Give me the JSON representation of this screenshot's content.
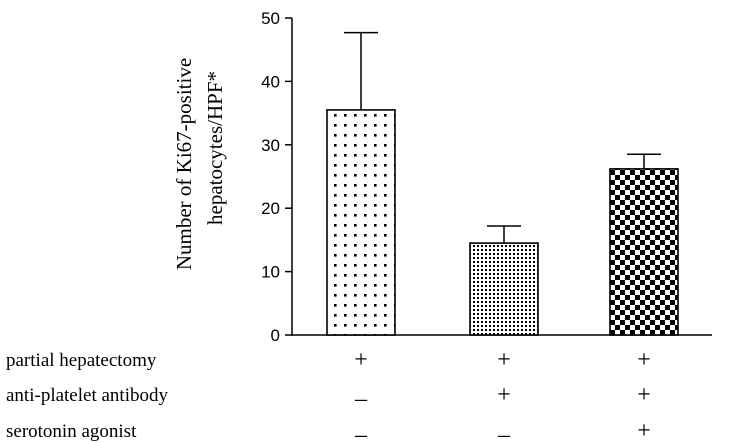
{
  "chart_data": {
    "type": "bar",
    "title": "",
    "ylabel_lines": [
      "Number of Ki67-positive",
      "hepatocytes/HPF*"
    ],
    "ylim": [
      0,
      50
    ],
    "yticks": [
      "0",
      "10",
      "20",
      "30",
      "40",
      "50"
    ],
    "grid": false,
    "bars": [
      {
        "value": 35.5,
        "error": 12.2,
        "pattern": "sparse-dots"
      },
      {
        "value": 14.5,
        "error": 2.7,
        "pattern": "dense-dots"
      },
      {
        "value": 26.2,
        "error": 2.3,
        "pattern": "checkerboard"
      }
    ],
    "treatment_rows": [
      {
        "label": "partial hepatectomy",
        "signs": [
          "+",
          "+",
          "+"
        ]
      },
      {
        "label": "anti-platelet antibody",
        "signs": [
          "–",
          "+",
          "+"
        ]
      },
      {
        "label": "serotonin agonist",
        "signs": [
          "–",
          "–",
          "+"
        ]
      }
    ]
  }
}
